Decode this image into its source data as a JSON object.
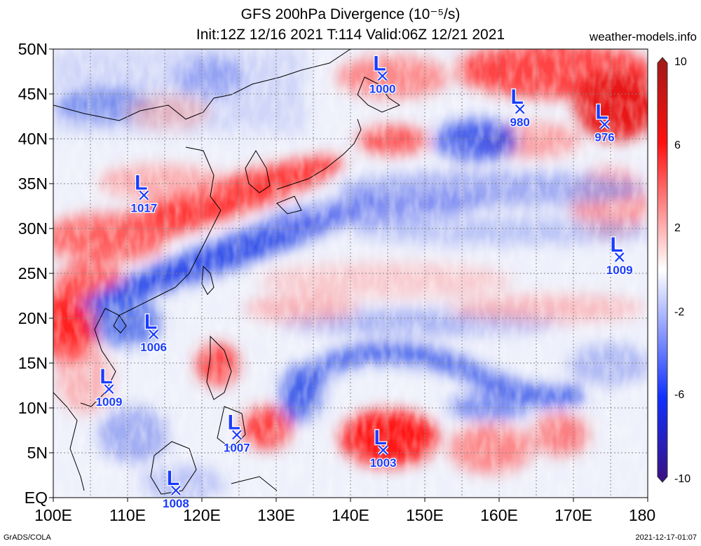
{
  "header": {
    "title": "GFS 200hPa Divergence (10⁻⁵/s)",
    "subtitle": "Init:12Z 12/16 2021 T:114 Valid:06Z 12/21 2021",
    "site": "weather-models.info"
  },
  "footer": {
    "left": "GrADS/COLA",
    "right": "2021-12-17-01:07"
  },
  "map": {
    "lat_labels": [
      "50N",
      "45N",
      "40N",
      "35N",
      "30N",
      "25N",
      "20N",
      "15N",
      "10N",
      "5N",
      "EQ"
    ],
    "lon_labels": [
      "100E",
      "110E",
      "120E",
      "130E",
      "140E",
      "150E",
      "160E",
      "170E",
      "180"
    ],
    "lat_range": [
      0,
      50
    ],
    "lon_range": [
      100,
      180
    ],
    "grid": "dotted every 5 degrees",
    "colorbar": {
      "labels": [
        "10",
        "6",
        "2",
        "-2",
        "-6",
        "-10"
      ],
      "min_color": "#3a1080",
      "neg_color": "#1030ff",
      "zero_color": "#ffffff",
      "pos_color": "#ff1010",
      "max_color": "#a01818"
    },
    "lows": [
      {
        "pressure": "1000",
        "lon": 144.3,
        "lat": 47.0
      },
      {
        "pressure": "980",
        "lon": 162.8,
        "lat": 43.3
      },
      {
        "pressure": "976",
        "lon": 174.2,
        "lat": 41.6
      },
      {
        "pressure": "1017",
        "lon": 112.2,
        "lat": 33.7
      },
      {
        "pressure": "1009",
        "lon": 176.2,
        "lat": 26.8
      },
      {
        "pressure": "1006",
        "lon": 113.5,
        "lat": 18.2
      },
      {
        "pressure": "1009",
        "lon": 107.5,
        "lat": 12.1
      },
      {
        "pressure": "1007",
        "lon": 124.7,
        "lat": 7.0
      },
      {
        "pressure": "1003",
        "lon": 144.4,
        "lat": 5.3
      },
      {
        "pressure": "1008",
        "lon": 116.5,
        "lat": 0.8
      }
    ]
  }
}
